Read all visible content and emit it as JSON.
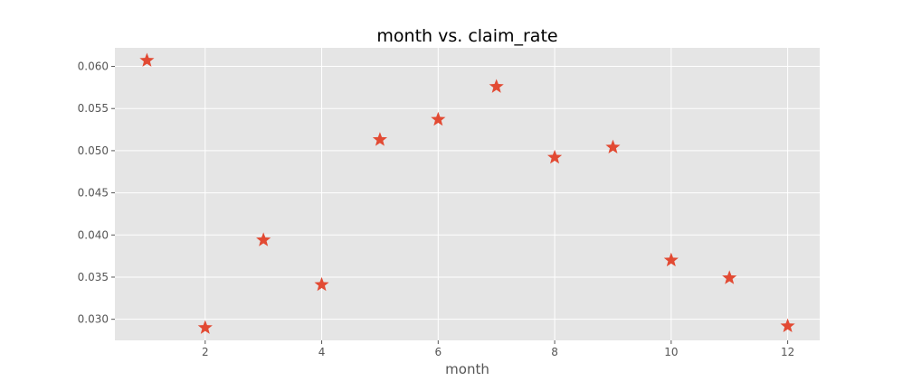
{
  "chart_data": {
    "type": "scatter",
    "title": "month vs. claim_rate",
    "xlabel": "month",
    "ylabel": "",
    "marker": "star",
    "x": [
      1,
      2,
      3,
      4,
      5,
      6,
      7,
      8,
      9,
      10,
      11,
      12
    ],
    "y": [
      0.0607,
      0.029,
      0.0394,
      0.0341,
      0.0513,
      0.0537,
      0.0576,
      0.0492,
      0.0504,
      0.037,
      0.0349,
      0.0292
    ],
    "xlim": [
      0.45,
      12.55
    ],
    "ylim": [
      0.0275,
      0.0622
    ],
    "xticks": [
      2,
      4,
      6,
      8,
      10,
      12
    ],
    "xtick_labels": [
      "2",
      "4",
      "6",
      "8",
      "10",
      "12"
    ],
    "yticks": [
      0.03,
      0.035,
      0.04,
      0.045,
      0.05,
      0.055,
      0.06
    ],
    "ytick_labels": [
      "0.030",
      "0.035",
      "0.040",
      "0.045",
      "0.050",
      "0.055",
      "0.060"
    ],
    "grid": true,
    "colors": {
      "background": "#E5E5E5",
      "grid": "#FFFFFF",
      "marker": "#E24A33"
    }
  }
}
